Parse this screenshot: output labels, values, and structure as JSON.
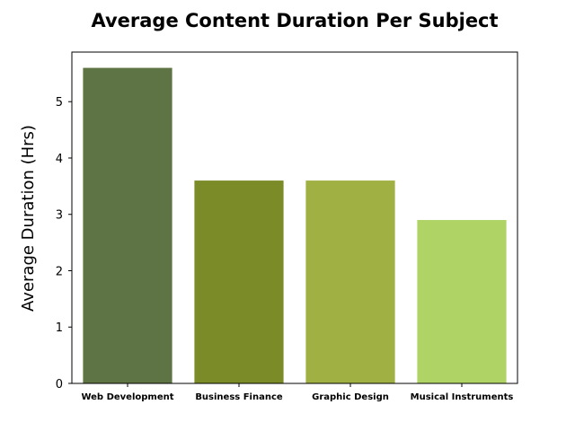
{
  "chart_data": {
    "type": "bar",
    "title": "Average Content Duration Per Subject",
    "xlabel": "",
    "ylabel": "Average Duration (Hrs)",
    "categories": [
      "Web Development",
      "Business Finance",
      "Graphic Design",
      "Musical Instruments"
    ],
    "values": [
      5.6,
      3.6,
      3.6,
      2.9
    ],
    "colors": [
      "#5f7444",
      "#7a8b27",
      "#a0b043",
      "#b0d366"
    ],
    "ylim": [
      0,
      5.88
    ],
    "yticks": [
      "0",
      "1",
      "2",
      "3",
      "4",
      "5"
    ],
    "grid": false,
    "legend": "none"
  }
}
